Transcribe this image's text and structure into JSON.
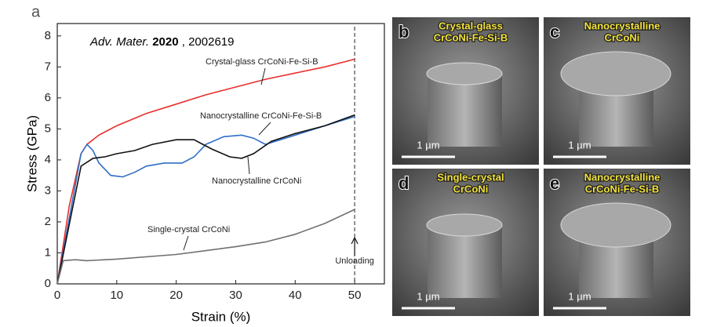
{
  "panel_label": "a",
  "chart_data": {
    "type": "line",
    "citation": {
      "journal": "Adv. Mater.",
      "year": "2020",
      "number": ", 2002619"
    },
    "xlabel": "Strain (%)",
    "ylabel": "Stress (GPa)",
    "xlim": [
      0,
      55
    ],
    "ylim": [
      0,
      8.4
    ],
    "xticks": [
      0,
      10,
      20,
      30,
      40,
      50
    ],
    "yticks": [
      0,
      1,
      2,
      3,
      4,
      5,
      6,
      7,
      8
    ],
    "unloading": {
      "label": "Unloading",
      "x": 50
    },
    "series": [
      {
        "name": "Crystal-glass CrCoNi-Fe-Si-B",
        "color": "#e8302c",
        "x": [
          0,
          2,
          4,
          5,
          7,
          10,
          15,
          20,
          25,
          30,
          35,
          40,
          45,
          50
        ],
        "values": [
          0,
          2.5,
          4.2,
          4.5,
          4.8,
          5.1,
          5.5,
          5.8,
          6.1,
          6.35,
          6.6,
          6.8,
          7.0,
          7.25
        ]
      },
      {
        "name": "Nanocrystalline CrCoNi-Fe-Si-B",
        "color": "#2f6fc6",
        "x": [
          0,
          4,
          5,
          6,
          7,
          9,
          11,
          13,
          15,
          18,
          21,
          23,
          25,
          28,
          31,
          33,
          35,
          40,
          45,
          50
        ],
        "values": [
          0,
          4.2,
          4.5,
          4.3,
          3.9,
          3.5,
          3.45,
          3.6,
          3.8,
          3.9,
          3.9,
          4.1,
          4.5,
          4.75,
          4.8,
          4.7,
          4.5,
          4.8,
          5.1,
          5.4
        ]
      },
      {
        "name": "Nanocrystalline CrCoNi",
        "color": "#111111",
        "x": [
          0,
          4,
          6,
          8,
          10,
          13,
          16,
          20,
          23,
          26,
          29,
          31,
          33,
          36,
          40,
          45,
          50
        ],
        "values": [
          0,
          3.8,
          4.05,
          4.1,
          4.2,
          4.3,
          4.5,
          4.65,
          4.65,
          4.35,
          4.1,
          4.05,
          4.2,
          4.6,
          4.85,
          5.1,
          5.45
        ]
      },
      {
        "name": "Single-crystal CrCoNi",
        "color": "#707070",
        "x": [
          0,
          1,
          3,
          5,
          10,
          20,
          30,
          35,
          40,
          45,
          50
        ],
        "values": [
          0,
          0.75,
          0.78,
          0.75,
          0.8,
          0.95,
          1.2,
          1.35,
          1.6,
          1.95,
          2.4
        ]
      }
    ]
  },
  "images": [
    {
      "label": "b",
      "title": [
        "Crystal-glass",
        "CrCoNi-Fe-Si-B"
      ],
      "scale": "1 µm"
    },
    {
      "label": "c",
      "title": [
        "Nanocrystalline",
        "CrCoNi"
      ],
      "scale": "1 µm"
    },
    {
      "label": "d",
      "title": [
        "Single-crystal",
        "CrCoNi"
      ],
      "scale": "1 µm"
    },
    {
      "label": "e",
      "title": [
        "Nanocrystalline",
        "CrCoNi-Fe-Si-B"
      ],
      "scale": "1 µm"
    }
  ]
}
